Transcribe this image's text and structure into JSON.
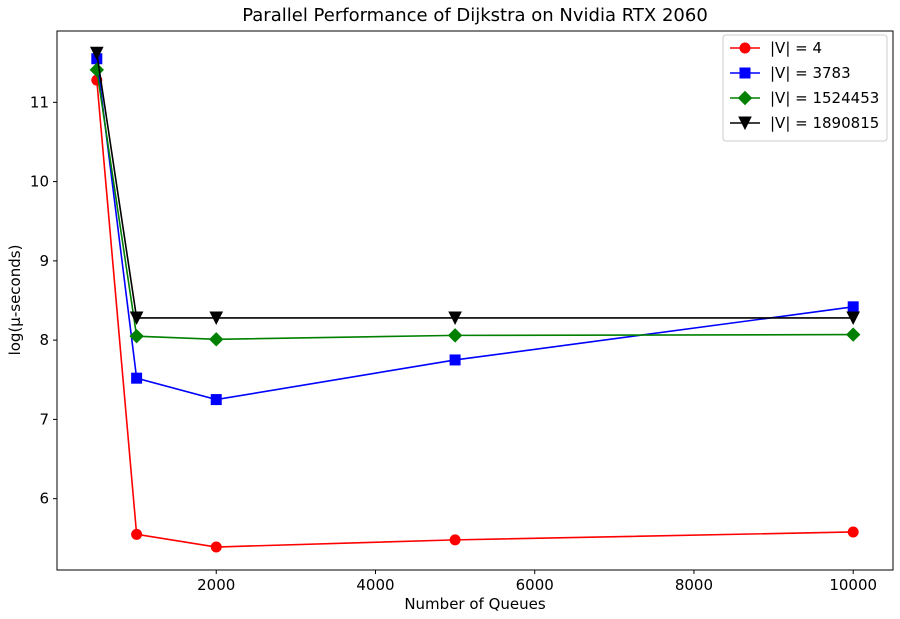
{
  "chart_data": {
    "type": "line",
    "title": "Parallel Performance of Dijkstra on Nvidia RTX 2060",
    "xlabel": "Number of Queues",
    "ylabel": "log(μ-seconds)",
    "x": [
      500,
      1000,
      2000,
      5000,
      10000
    ],
    "xlim": [
      0,
      10500
    ],
    "ylim": [
      5.1,
      11.9
    ],
    "xticks": [
      2000,
      4000,
      6000,
      8000,
      10000
    ],
    "xtick_labels": [
      "2000",
      "4000",
      "6000",
      "8000",
      "10000"
    ],
    "yticks": [
      6,
      7,
      8,
      9,
      10,
      11
    ],
    "ytick_labels": [
      "6",
      "7",
      "8",
      "9",
      "10",
      "11"
    ],
    "grid": false,
    "legend_position": "top-right",
    "series": [
      {
        "name": "|V| = 4",
        "color": "#ff0000",
        "marker": "circle",
        "values": [
          11.28,
          5.55,
          5.39,
          5.48,
          5.58
        ]
      },
      {
        "name": "|V| = 3783",
        "color": "#0000ff",
        "marker": "square",
        "values": [
          11.55,
          7.52,
          7.25,
          7.75,
          8.42
        ]
      },
      {
        "name": "|V| = 1524453",
        "color": "#008000",
        "marker": "diamond",
        "values": [
          11.41,
          8.05,
          8.01,
          8.06,
          8.07
        ]
      },
      {
        "name": "|V| = 1890815",
        "color": "#000000",
        "marker": "triangle-down",
        "values": [
          11.62,
          8.28,
          8.28,
          8.28,
          8.28
        ]
      }
    ]
  }
}
